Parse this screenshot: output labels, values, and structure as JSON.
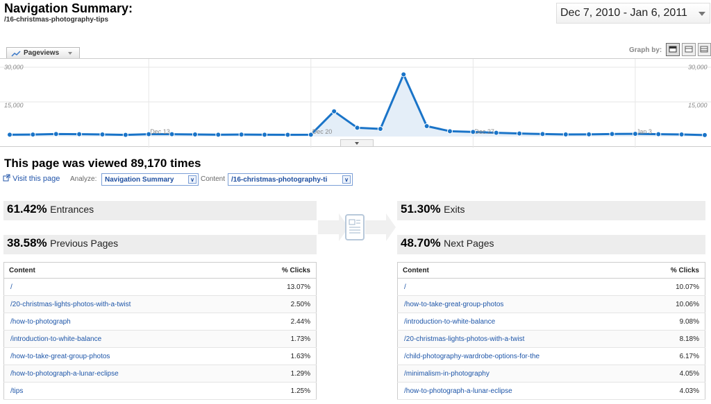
{
  "header": {
    "title": "Navigation Summary:",
    "page_path": "/16-christmas-photography-tips",
    "date_range": "Dec 7, 2010 - Jan 6, 2011"
  },
  "graph_controls": {
    "metric_label": "Pageviews",
    "graph_by_label": "Graph by:"
  },
  "chart_data": {
    "type": "line",
    "y_ticks": [
      "30,000",
      "15,000"
    ],
    "ylim": [
      0,
      30000
    ],
    "x_labels": [
      "Dec 13",
      "Dec 20",
      "Dec 27",
      "Jan 3"
    ],
    "x": [
      "Dec 7",
      "Dec 8",
      "Dec 9",
      "Dec 10",
      "Dec 11",
      "Dec 12",
      "Dec 13",
      "Dec 14",
      "Dec 15",
      "Dec 16",
      "Dec 17",
      "Dec 18",
      "Dec 19",
      "Dec 20",
      "Dec 21",
      "Dec 22",
      "Dec 23",
      "Dec 24",
      "Dec 25",
      "Dec 26",
      "Dec 27",
      "Dec 28",
      "Dec 29",
      "Dec 30",
      "Dec 31",
      "Jan 1",
      "Jan 2",
      "Jan 3",
      "Jan 4",
      "Jan 5",
      "Jan 6"
    ],
    "values": [
      800,
      850,
      1100,
      1000,
      900,
      700,
      1000,
      1000,
      900,
      800,
      850,
      800,
      750,
      800,
      10900,
      3800,
      3300,
      26900,
      4500,
      2300,
      2000,
      1600,
      1300,
      1100,
      900,
      950,
      1100,
      1150,
      1000,
      900,
      650
    ],
    "color": "#1a74c8",
    "fill": "#e4eef8"
  },
  "summary": {
    "viewed_text": "This page was viewed 89,170 times",
    "visit_link": "Visit this page",
    "analyze_label": "Analyze:",
    "analyze_value": "Navigation Summary",
    "content_label": "Content",
    "content_value": "/16-christmas-photography-ti"
  },
  "stats": {
    "entrances": {
      "pct": "61.42%",
      "label": "Entrances"
    },
    "previous": {
      "pct": "38.58%",
      "label": "Previous Pages"
    },
    "exits": {
      "pct": "51.30%",
      "label": "Exits"
    },
    "next": {
      "pct": "48.70%",
      "label": "Next Pages"
    }
  },
  "previous_table": {
    "headers": [
      "Content",
      "% Clicks"
    ],
    "rows": [
      {
        "content": "/",
        "clicks": "13.07%"
      },
      {
        "content": "/20-christmas-lights-photos-with-a-twist",
        "clicks": "2.50%"
      },
      {
        "content": "/how-to-photograph",
        "clicks": "2.44%"
      },
      {
        "content": "/introduction-to-white-balance",
        "clicks": "1.73%"
      },
      {
        "content": "/how-to-take-great-group-photos",
        "clicks": "1.63%"
      },
      {
        "content": "/how-to-photograph-a-lunar-eclipse",
        "clicks": "1.29%"
      },
      {
        "content": "/tips",
        "clicks": "1.25%"
      }
    ]
  },
  "next_table": {
    "headers": [
      "Content",
      "% Clicks"
    ],
    "rows": [
      {
        "content": "/",
        "clicks": "10.07%"
      },
      {
        "content": "/how-to-take-great-group-photos",
        "clicks": "10.06%"
      },
      {
        "content": "/introduction-to-white-balance",
        "clicks": "9.08%"
      },
      {
        "content": "/20-christmas-lights-photos-with-a-twist",
        "clicks": "8.18%"
      },
      {
        "content": "/child-photography-wardrobe-options-for-the",
        "clicks": "6.17%"
      },
      {
        "content": "/minimalism-in-photography",
        "clicks": "4.05%"
      },
      {
        "content": "/how-to-photograph-a-lunar-eclipse",
        "clicks": "4.03%"
      }
    ]
  }
}
